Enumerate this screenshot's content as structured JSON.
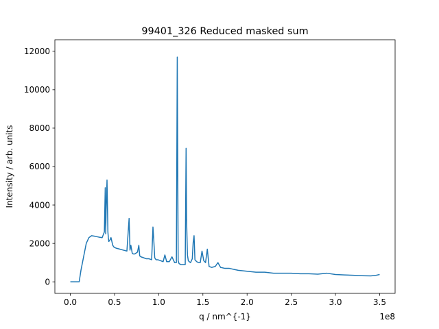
{
  "chart_data": {
    "type": "line",
    "title": "99401_326 Reduced masked sum",
    "xlabel": "q / nm^{-1}",
    "ylabel": "Intensity / arb. units",
    "x_offset_text": "1e8",
    "xlim": [
      -17500000.0,
      367500000.0
    ],
    "ylim": [
      -600,
      12600
    ],
    "x_ticks": [
      0,
      50000000.0,
      100000000.0,
      150000000.0,
      200000000.0,
      250000000.0,
      300000000.0,
      350000000.0
    ],
    "x_tick_labels": [
      "0.0",
      "0.5",
      "1.0",
      "1.5",
      "2.0",
      "2.5",
      "3.0",
      "3.5"
    ],
    "y_ticks": [
      0,
      2000,
      4000,
      6000,
      8000,
      10000,
      12000
    ],
    "y_tick_labels": [
      "0",
      "2000",
      "4000",
      "6000",
      "8000",
      "10000",
      "12000"
    ],
    "grid": false,
    "line_color": "#1f77b4",
    "series": [
      {
        "x": [
          0,
          10000000.0,
          12000000.0,
          15000000.0,
          18000000.0,
          21000000.0,
          24000000.0,
          27000000.0,
          30000000.0,
          33000000.0,
          36000000.0,
          38500000.0,
          39500000.0,
          40000000.0,
          40500000.0,
          41500000.0,
          42500000.0,
          43000000.0,
          43500000.0,
          44500000.0,
          46000000.0,
          48000000.0,
          49500000.0,
          52000000.0,
          56000000.0,
          60000000.0,
          64000000.0,
          66500000.0,
          67500000.0,
          68500000.0,
          70000000.0,
          71000000.0,
          73000000.0,
          76000000.0,
          77500000.0,
          78500000.0,
          80000000.0,
          83000000.0,
          86000000.0,
          89000000.0,
          92000000.0,
          93500000.0,
          94500000.0,
          95500000.0,
          97000000.0,
          99000000.0,
          102000000.0,
          105000000.0,
          107000000.0,
          109000000.0,
          112000000.0,
          115000000.0,
          118000000.0,
          120000000.0,
          121000000.0,
          122000000.0,
          123000000.0,
          125000000.0,
          128000000.0,
          130000000.0,
          131000000.0,
          131500000.0,
          132500000.0,
          133500000.0,
          134500000.0,
          136000000.0,
          138000000.0,
          139000000.0,
          140000000.0,
          141000000.0,
          143000000.0,
          145000000.0,
          147000000.0,
          149000000.0,
          151000000.0,
          153000000.0,
          155000000.0,
          157000000.0,
          160000000.0,
          164000000.0,
          167000000.0,
          170000000.0,
          175000000.0,
          180000000.0,
          185000000.0,
          190000000.0,
          200000000.0,
          210000000.0,
          220000000.0,
          230000000.0,
          240000000.0,
          250000000.0,
          260000000.0,
          270000000.0,
          280000000.0,
          290000000.0,
          300000000.0,
          310000000.0,
          320000000.0,
          330000000.0,
          340000000.0,
          345000000.0,
          350000000.0
        ],
        "y": [
          0,
          0,
          600,
          1300,
          2000,
          2300,
          2400,
          2380,
          2350,
          2320,
          2300,
          2600,
          4900,
          2500,
          3700,
          5300,
          2600,
          2300,
          2100,
          2150,
          2300,
          1900,
          1800,
          1750,
          1700,
          1650,
          1600,
          3300,
          1650,
          1900,
          1500,
          1450,
          1450,
          1550,
          1900,
          1350,
          1300,
          1250,
          1200,
          1200,
          1150,
          2850,
          2100,
          1250,
          1150,
          1150,
          1100,
          1050,
          1400,
          1050,
          1050,
          1300,
          1000,
          1000,
          11700,
          1100,
          950,
          900,
          900,
          900,
          6950,
          3300,
          1400,
          1100,
          1050,
          1000,
          1200,
          2050,
          2400,
          1150,
          1050,
          1000,
          1000,
          1600,
          1100,
          1000,
          1700,
          800,
          750,
          800,
          1000,
          750,
          700,
          700,
          650,
          600,
          550,
          500,
          500,
          450,
          450,
          450,
          420,
          420,
          400,
          450,
          380,
          360,
          340,
          320,
          310,
          330,
          380
        ]
      }
    ]
  }
}
